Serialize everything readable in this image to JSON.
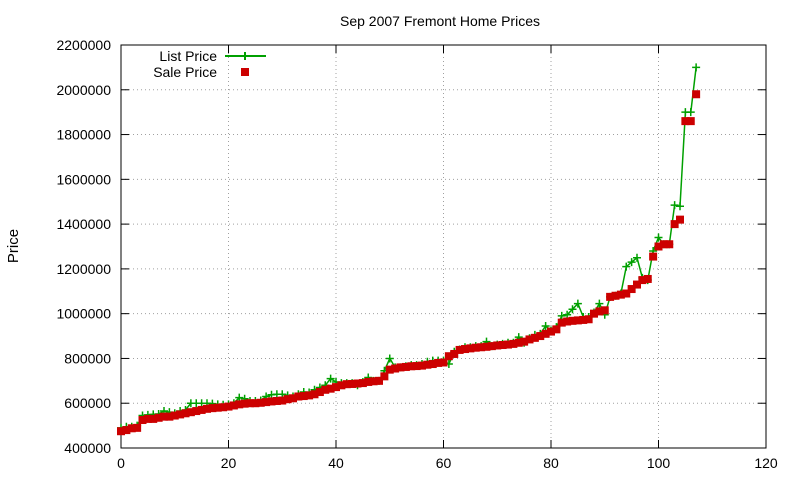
{
  "chart_data": {
    "type": "scatter",
    "title": "Sep 2007 Fremont Home Prices",
    "xlabel": "",
    "ylabel": "Price",
    "xlim": [
      0,
      120
    ],
    "ylim": [
      400000,
      2200000
    ],
    "x_ticks": [
      0,
      20,
      40,
      60,
      80,
      100,
      120
    ],
    "y_ticks": [
      400000,
      600000,
      800000,
      1000000,
      1200000,
      1400000,
      1600000,
      1800000,
      2000000,
      2200000
    ],
    "grid": true,
    "legend_position": "top-left",
    "colors": {
      "list": "#00a000",
      "sale": "#cc0000"
    },
    "series": [
      {
        "name": "List Price",
        "style": "line-with-plus-markers",
        "x": [
          0,
          1,
          2,
          3,
          4,
          5,
          6,
          7,
          8,
          9,
          10,
          11,
          12,
          13,
          14,
          15,
          16,
          17,
          18,
          19,
          20,
          21,
          22,
          23,
          24,
          25,
          26,
          27,
          28,
          29,
          30,
          31,
          32,
          33,
          34,
          35,
          36,
          37,
          38,
          39,
          40,
          41,
          42,
          43,
          44,
          45,
          46,
          47,
          48,
          49,
          50,
          51,
          52,
          53,
          54,
          55,
          56,
          57,
          58,
          59,
          60,
          61,
          62,
          63,
          64,
          65,
          66,
          67,
          68,
          69,
          70,
          71,
          72,
          73,
          74,
          75,
          76,
          77,
          78,
          79,
          80,
          81,
          82,
          83,
          84,
          85,
          86,
          87,
          88,
          89,
          90,
          91,
          92,
          93,
          94,
          95,
          96,
          97,
          98,
          99,
          100,
          101,
          102,
          103,
          104,
          105,
          106,
          107
        ],
        "y": [
          490000,
          495000,
          495000,
          500000,
          545000,
          548000,
          550000,
          552000,
          565000,
          560000,
          555000,
          565000,
          570000,
          600000,
          600000,
          600000,
          600000,
          598000,
          595000,
          593000,
          595000,
          600000,
          625000,
          620000,
          610000,
          610000,
          612000,
          630000,
          638000,
          640000,
          640000,
          635000,
          630000,
          640000,
          650000,
          648000,
          660000,
          670000,
          680000,
          710000,
          695000,
          690000,
          690000,
          690000,
          680000,
          695000,
          715000,
          700000,
          700000,
          745000,
          800000,
          760000,
          760000,
          765000,
          770000,
          770000,
          775000,
          785000,
          790000,
          790000,
          790000,
          775000,
          830000,
          840000,
          850000,
          850000,
          855000,
          855000,
          875000,
          855000,
          862000,
          865000,
          870000,
          870000,
          895000,
          870000,
          890000,
          905000,
          910000,
          945000,
          925000,
          940000,
          990000,
          995000,
          1020000,
          1045000,
          985000,
          985000,
          1005000,
          1045000,
          995000,
          1075000,
          1080000,
          1090000,
          1210000,
          1230000,
          1250000,
          1160000,
          1150000,
          1280000,
          1340000,
          1310000,
          1310000,
          1485000,
          1480000,
          1900000,
          1900000,
          2100000
        ]
      },
      {
        "name": "Sale Price",
        "style": "square-markers",
        "x": [
          0,
          1,
          2,
          3,
          4,
          5,
          6,
          7,
          8,
          9,
          10,
          11,
          12,
          13,
          14,
          15,
          16,
          17,
          18,
          19,
          20,
          21,
          22,
          23,
          24,
          25,
          26,
          27,
          28,
          29,
          30,
          31,
          32,
          33,
          34,
          35,
          36,
          37,
          38,
          39,
          40,
          41,
          42,
          43,
          44,
          45,
          46,
          47,
          48,
          49,
          50,
          51,
          52,
          53,
          54,
          55,
          56,
          57,
          58,
          59,
          60,
          61,
          62,
          63,
          64,
          65,
          66,
          67,
          68,
          69,
          70,
          71,
          72,
          73,
          74,
          75,
          76,
          77,
          78,
          79,
          80,
          81,
          82,
          83,
          84,
          85,
          86,
          87,
          88,
          89,
          90,
          91,
          92,
          93,
          94,
          95,
          96,
          97,
          98,
          99,
          100,
          101,
          102,
          103,
          104,
          105,
          106,
          107
        ],
        "y": [
          475000,
          480000,
          488000,
          490000,
          525000,
          530000,
          530000,
          535000,
          540000,
          540000,
          545000,
          550000,
          555000,
          560000,
          565000,
          570000,
          575000,
          578000,
          580000,
          582000,
          585000,
          590000,
          595000,
          598000,
          600000,
          600000,
          602000,
          605000,
          608000,
          610000,
          612000,
          618000,
          622000,
          630000,
          632000,
          635000,
          640000,
          650000,
          660000,
          665000,
          672000,
          680000,
          685000,
          686000,
          688000,
          690000,
          695000,
          698000,
          700000,
          720000,
          750000,
          755000,
          760000,
          762000,
          765000,
          766000,
          768000,
          772000,
          775000,
          780000,
          782000,
          810000,
          820000,
          838000,
          842000,
          845000,
          848000,
          850000,
          852000,
          855000,
          858000,
          860000,
          862000,
          865000,
          870000,
          875000,
          885000,
          892000,
          900000,
          910000,
          920000,
          930000,
          960000,
          965000,
          968000,
          970000,
          972000,
          975000,
          1000000,
          1010000,
          1015000,
          1075000,
          1080000,
          1085000,
          1090000,
          1110000,
          1130000,
          1150000,
          1155000,
          1255000,
          1300000,
          1310000,
          1310000,
          1400000,
          1420000,
          1860000,
          1860000,
          1980000
        ]
      }
    ]
  }
}
